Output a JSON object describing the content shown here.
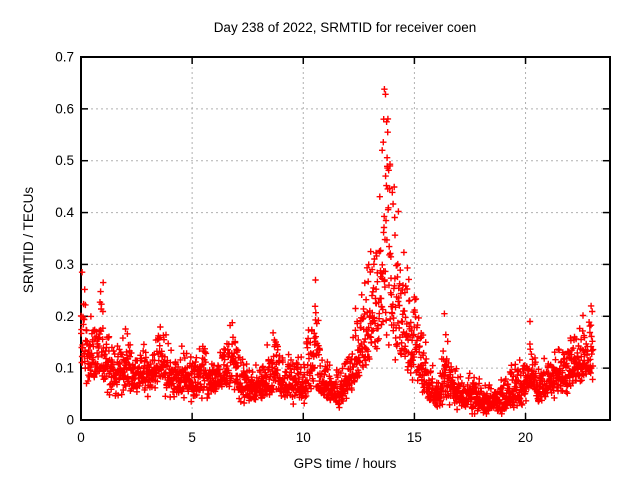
{
  "title": "Day 238 of 2022, SRMTID for receiver coen",
  "chart_data": {
    "type": "scatter",
    "title": "Day 238 of 2022, SRMTID for receiver coen",
    "xlabel": "GPS time / hours",
    "ylabel": "SRMTID / TECUs",
    "xlim": [
      0,
      23.8
    ],
    "ylim": [
      0,
      0.7
    ],
    "xticks": [
      0,
      5,
      10,
      15,
      20
    ],
    "yticks": [
      0,
      0.1,
      0.2,
      0.3,
      0.4,
      0.5,
      0.6,
      0.7
    ],
    "grid": true,
    "grid_style": "dashed",
    "grid_color": "#b0b0b0",
    "marker": "plus",
    "marker_color": "#ff0000",
    "border_color": "#000000",
    "legend": "none",
    "series_name": "SRMTID",
    "data_start_hour": 0.0,
    "data_end_hour": 23.05,
    "points_per_hour": 100,
    "seed": 238,
    "peak": {
      "x": 13.7,
      "y": 0.64
    },
    "envelope_note": "per-time bulk range [hour, low, high] read from plot",
    "envelope": [
      [
        0.0,
        0.1,
        0.28
      ],
      [
        0.3,
        0.08,
        0.24
      ],
      [
        0.6,
        0.08,
        0.2
      ],
      [
        0.9,
        0.09,
        0.26
      ],
      [
        1.2,
        0.07,
        0.18
      ],
      [
        1.6,
        0.06,
        0.14
      ],
      [
        2.0,
        0.07,
        0.19
      ],
      [
        2.4,
        0.06,
        0.13
      ],
      [
        2.8,
        0.06,
        0.16
      ],
      [
        3.2,
        0.07,
        0.13
      ],
      [
        3.5,
        0.08,
        0.22
      ],
      [
        3.9,
        0.06,
        0.16
      ],
      [
        4.3,
        0.05,
        0.12
      ],
      [
        4.7,
        0.06,
        0.16
      ],
      [
        5.1,
        0.05,
        0.12
      ],
      [
        5.5,
        0.06,
        0.17
      ],
      [
        5.9,
        0.05,
        0.12
      ],
      [
        6.3,
        0.06,
        0.15
      ],
      [
        6.8,
        0.07,
        0.21
      ],
      [
        7.3,
        0.05,
        0.13
      ],
      [
        7.8,
        0.04,
        0.1
      ],
      [
        8.3,
        0.05,
        0.13
      ],
      [
        8.7,
        0.06,
        0.19
      ],
      [
        9.1,
        0.05,
        0.13
      ],
      [
        9.6,
        0.05,
        0.12
      ],
      [
        10.0,
        0.05,
        0.14
      ],
      [
        10.5,
        0.07,
        0.27
      ],
      [
        10.9,
        0.05,
        0.13
      ],
      [
        11.3,
        0.04,
        0.11
      ],
      [
        11.7,
        0.03,
        0.1
      ],
      [
        12.0,
        0.05,
        0.13
      ],
      [
        12.4,
        0.08,
        0.22
      ],
      [
        12.7,
        0.1,
        0.3
      ],
      [
        13.0,
        0.12,
        0.35
      ],
      [
        13.3,
        0.15,
        0.45
      ],
      [
        13.6,
        0.18,
        0.6
      ],
      [
        13.8,
        0.17,
        0.64
      ],
      [
        14.0,
        0.14,
        0.52
      ],
      [
        14.3,
        0.12,
        0.4
      ],
      [
        14.6,
        0.1,
        0.33
      ],
      [
        14.9,
        0.09,
        0.28
      ],
      [
        15.2,
        0.07,
        0.22
      ],
      [
        15.5,
        0.05,
        0.16
      ],
      [
        15.8,
        0.04,
        0.11
      ],
      [
        16.1,
        0.03,
        0.09
      ],
      [
        16.4,
        0.05,
        0.2
      ],
      [
        16.7,
        0.04,
        0.11
      ],
      [
        17.1,
        0.03,
        0.09
      ],
      [
        17.5,
        0.03,
        0.09
      ],
      [
        18.0,
        0.02,
        0.08
      ],
      [
        18.5,
        0.02,
        0.07
      ],
      [
        19.0,
        0.02,
        0.08
      ],
      [
        19.4,
        0.03,
        0.12
      ],
      [
        19.8,
        0.04,
        0.11
      ],
      [
        20.2,
        0.06,
        0.19
      ],
      [
        20.6,
        0.04,
        0.12
      ],
      [
        21.0,
        0.05,
        0.13
      ],
      [
        21.5,
        0.06,
        0.15
      ],
      [
        22.0,
        0.07,
        0.17
      ],
      [
        22.5,
        0.08,
        0.2
      ],
      [
        22.9,
        0.09,
        0.22
      ],
      [
        23.05,
        0.1,
        0.21
      ]
    ],
    "extremes": [
      [
        13.65,
        0.638
      ],
      [
        13.7,
        0.628
      ],
      [
        13.62,
        0.58
      ],
      [
        13.75,
        0.575
      ],
      [
        13.8,
        0.555
      ],
      [
        13.55,
        0.52
      ],
      [
        13.9,
        0.49
      ],
      [
        0.05,
        0.285
      ],
      [
        10.55,
        0.27
      ],
      [
        1.0,
        0.265
      ],
      [
        12.35,
        0.215
      ],
      [
        16.35,
        0.205
      ],
      [
        20.2,
        0.19
      ],
      [
        22.95,
        0.22
      ]
    ]
  }
}
